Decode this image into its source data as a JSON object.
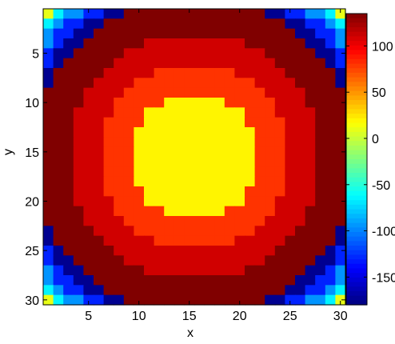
{
  "chart_data": {
    "type": "heatmap",
    "title": "",
    "xlabel": "x",
    "ylabel": "y",
    "x_range": [
      1,
      30
    ],
    "y_range": [
      1,
      30
    ],
    "y_direction": "top-down",
    "grid": false,
    "x_ticks": [
      5,
      10,
      15,
      20,
      25,
      30
    ],
    "y_ticks": [
      5,
      10,
      15,
      20,
      25,
      30
    ],
    "colorbar": {
      "colormap": "jet",
      "range": [
        -180,
        135
      ],
      "ticks": [
        100,
        50,
        0,
        -50,
        -100,
        -150
      ]
    },
    "description_of_structure": "",
    "center": [
      15.5,
      15.5
    ],
    "radial_bands": [
      {
        "max_radius": 6.5,
        "value": 20
      },
      {
        "max_radius": 9.5,
        "value": 80
      },
      {
        "max_radius": 12.5,
        "value": 110
      },
      {
        "max_radius": 16.0,
        "value": 135
      },
      {
        "max_radius": 17.2,
        "value": -175
      },
      {
        "max_radius": 18.4,
        "value": -130
      },
      {
        "max_radius": 19.4,
        "value": -95
      },
      {
        "max_radius": 20.2,
        "value": -65
      },
      {
        "max_radius": 99,
        "value": 10
      }
    ]
  }
}
